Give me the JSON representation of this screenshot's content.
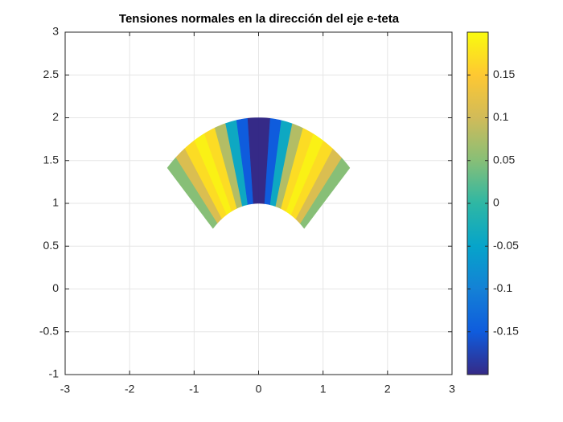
{
  "chart_data": {
    "type": "polar-heatmap",
    "title": "Tensiones normales en la dirección del eje e-teta",
    "theta": [
      45,
      50,
      55,
      60,
      65,
      70,
      75,
      80,
      85,
      90,
      95,
      100,
      105,
      110,
      115,
      120,
      125,
      130,
      135
    ],
    "r": [
      1,
      2
    ],
    "values": [
      0.05,
      0.11,
      0.17,
      0.19,
      0.17,
      0.08,
      -0.04,
      -0.15,
      -0.2,
      -0.2,
      -0.15,
      -0.04,
      0.08,
      0.17,
      0.19,
      0.17,
      0.11,
      0.05
    ],
    "xlim": [
      -3,
      3
    ],
    "xticks": [
      -3,
      -2,
      -1,
      0,
      1,
      2,
      3
    ],
    "ylim": [
      -1,
      3
    ],
    "yticks": [
      -1,
      -0.5,
      0,
      0.5,
      1,
      1.5,
      2,
      2.5,
      3
    ],
    "clim": [
      -0.2,
      0.2
    ],
    "cticks": [
      -0.15,
      -0.1,
      -0.05,
      0,
      0.05,
      0.1,
      0.15
    ],
    "colormap": [
      "#352a87",
      "#0f5cdd",
      "#1481d6",
      "#06a4ca",
      "#2eb7a4",
      "#87bf77",
      "#d1bb59",
      "#fec832",
      "#f9fb0e"
    ],
    "grid": true
  }
}
